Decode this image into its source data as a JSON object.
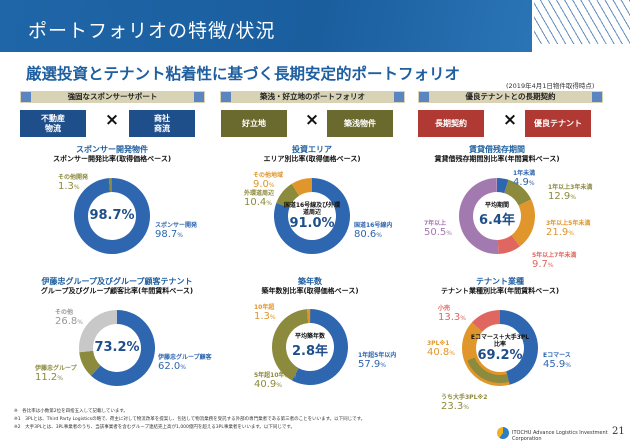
{
  "header": {
    "title": "ポートフォリオの特徴/状況"
  },
  "subtitle": "厳選投資とテナント粘着性に基づく長期安定的ポートフォリオ",
  "as_of": "(2019年4月1日物件取得時点)",
  "sections": [
    {
      "title": "強固なスポンサーサポート",
      "left": "不動産\n物流",
      "right": "商社\n商流",
      "color": "#1f4f8a"
    },
    {
      "title": "築浅・好立地のポートフォリオ",
      "left": "好立地",
      "right": "築浅物件",
      "color": "#6b6a2e"
    },
    {
      "title": "優良テナントとの長期契約",
      "left": "長期契約",
      "right": "優良テナント",
      "color": "#b03a33"
    }
  ],
  "cross": "×",
  "chart_data": [
    {
      "type": "pie",
      "title": "スポンサー開発物件",
      "subtitle": "スポンサー開発比率(取得価格ベース)",
      "center_label": "",
      "center_value": "98.7%",
      "series": [
        {
          "name": "スポンサー開発",
          "value": 98.7,
          "color": "#2e66b0"
        },
        {
          "name": "その他開発",
          "value": 1.3,
          "color": "#8c8a3c"
        }
      ]
    },
    {
      "type": "pie",
      "title": "投資エリア",
      "subtitle": "エリア別比率(取得価格ベース)",
      "center_label": "国道16号線及び外環道周辺",
      "center_value": "91.0%",
      "series": [
        {
          "name": "国道16号線内",
          "value": 80.6,
          "color": "#2e66b0"
        },
        {
          "name": "外環道周辺",
          "value": 10.4,
          "color": "#8c8a3c"
        },
        {
          "name": "その他地域",
          "value": 9.0,
          "color": "#e0962a"
        }
      ]
    },
    {
      "type": "pie",
      "title": "賃貸借残存期間",
      "subtitle": "賃貸借残存期間別比率(年間賃料ベース)",
      "center_label": "平均期間",
      "center_value": "6.4年",
      "series": [
        {
          "name": "1年未満",
          "value": 4.9,
          "color": "#2e66b0"
        },
        {
          "name": "1年以上3年未満",
          "value": 12.9,
          "color": "#8c8a3c"
        },
        {
          "name": "3年以上5年未満",
          "value": 21.9,
          "color": "#e0962a"
        },
        {
          "name": "5年以上7年未満",
          "value": 9.7,
          "color": "#e0675f"
        },
        {
          "name": "7年以上",
          "value": 50.5,
          "color": "#a37ab0"
        }
      ]
    },
    {
      "type": "pie",
      "title": "伊藤忠グループ及びグループ顧客テナント",
      "subtitle": "グループ及びグループ顧客比率(年間賃料ベース)",
      "center_label": "",
      "center_value": "73.2%",
      "series": [
        {
          "name": "伊藤忠グループ顧客",
          "value": 62.0,
          "color": "#2e66b0"
        },
        {
          "name": "伊藤忠グループ",
          "value": 11.2,
          "color": "#8c8a3c"
        },
        {
          "name": "その他",
          "value": 26.8,
          "color": "#c8c8c8"
        }
      ]
    },
    {
      "type": "pie",
      "title": "築年数",
      "subtitle": "築年数別比率(取得価格ベース)",
      "center_label": "平均築年数",
      "center_value": "2.8年",
      "series": [
        {
          "name": "1年超5年以内",
          "value": 57.9,
          "color": "#2e66b0"
        },
        {
          "name": "5年超10年以内",
          "value": 40.9,
          "color": "#8c8a3c"
        },
        {
          "name": "10年超",
          "value": 1.3,
          "color": "#e0962a"
        }
      ]
    },
    {
      "type": "pie",
      "title": "テナント業種",
      "subtitle": "テナント業種別比率(年間賃料ベース)",
      "center_label": "Eコマース＋大手3PL比率",
      "center_value": "69.2%",
      "series": [
        {
          "name": "Eコマース",
          "value": 45.9,
          "color": "#2e66b0"
        },
        {
          "name": "3PL※1",
          "value": 40.8,
          "color": "#e0962a"
        },
        {
          "name": "小売",
          "value": 13.3,
          "color": "#e0675f"
        },
        {
          "name": "うち大手3PL※2",
          "value": 23.3,
          "color": "#8c8a3c",
          "subset_of": "3PL※1"
        }
      ]
    }
  ],
  "footnotes": [
    "※　各比率は小数第2位を四捨五入して記載しています。",
    "※1　3PLとは、Third Party Logisticsの略で、荷主に対して物流改革を提案し、包括して物流業務を受託する外部の専門業者である第三者のことをいいます。以下同じです。",
    "※2　大手3PLとは、3PL事業者のうち、当該事業者を含むグループ連結売上高が1,000億円を超える3PL事業者をいいます。以下同じです。"
  ],
  "footer": {
    "company": "ITOCHU Advance Logistics Investment Corporation",
    "page": "21"
  }
}
